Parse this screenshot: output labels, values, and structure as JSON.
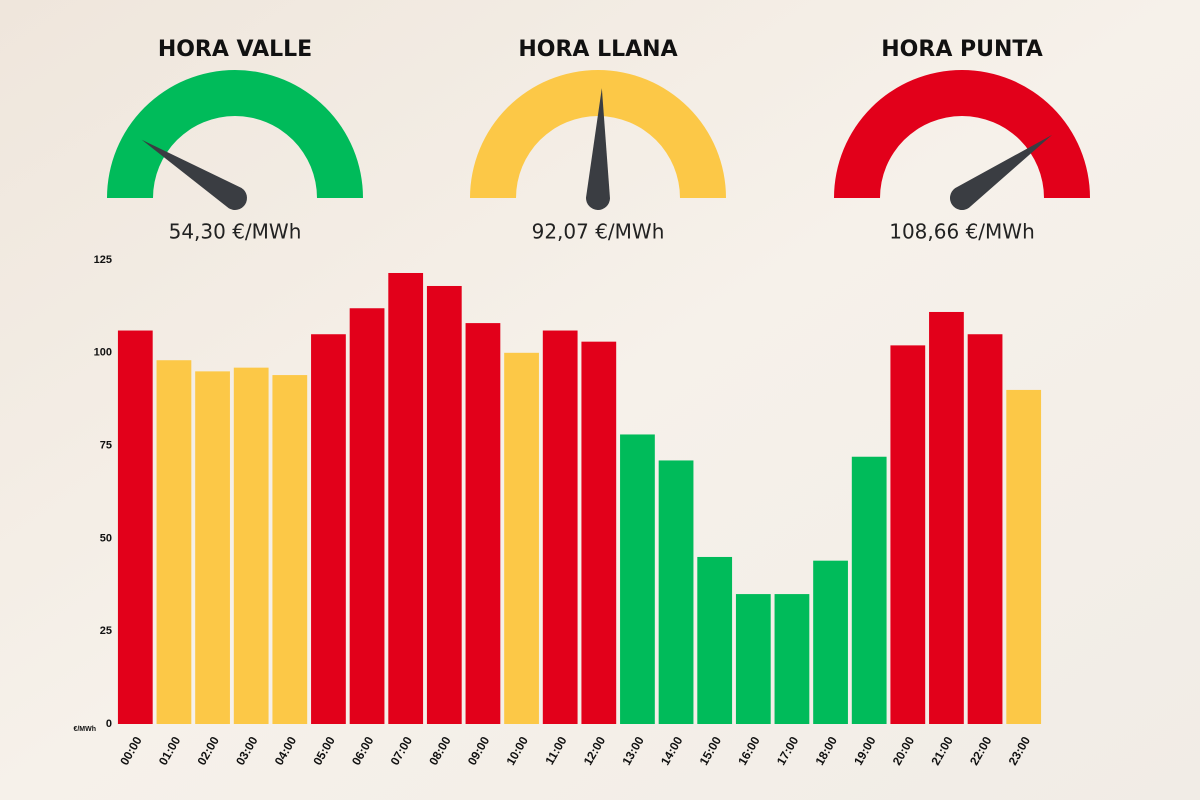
{
  "gauges": [
    {
      "title": "HORA VALLE",
      "label": "54,30 €/MWh",
      "color": "#00bb5a"
    },
    {
      "title": "HORA LLANA",
      "label": "92,07 €/MWh",
      "color": "#fcc847"
    },
    {
      "title": "HORA PUNTA",
      "label": "108,66 €/MWh",
      "color": "#e2001a"
    }
  ],
  "chart_data": {
    "type": "bar",
    "y_label": "€/MWh",
    "categories": [
      "00:00",
      "01:00",
      "02:00",
      "03:00",
      "04:00",
      "05:00",
      "06:00",
      "07:00",
      "08:00",
      "09:00",
      "10:00",
      "11:00",
      "12:00",
      "13:00",
      "14:00",
      "15:00",
      "16:00",
      "17:00",
      "18:00",
      "19:00",
      "20:00",
      "21:00",
      "22:00",
      "23:00"
    ],
    "values": [
      106,
      98,
      95,
      96,
      94,
      105,
      112,
      121.5,
      118,
      108,
      100,
      106,
      103,
      78,
      71,
      45,
      35,
      35,
      44,
      72,
      102,
      111,
      105,
      90
    ],
    "colors": [
      "#e2001a",
      "#fcc847",
      "#fcc847",
      "#fcc847",
      "#fcc847",
      "#e2001a",
      "#e2001a",
      "#e2001a",
      "#e2001a",
      "#e2001a",
      "#fcc847",
      "#e2001a",
      "#e2001a",
      "#00bb5a",
      "#00bb5a",
      "#00bb5a",
      "#00bb5a",
      "#00bb5a",
      "#00bb5a",
      "#00bb5a",
      "#e2001a",
      "#e2001a",
      "#e2001a",
      "#fcc847"
    ],
    "ylim": [
      0,
      125
    ],
    "yticks": [
      0,
      25,
      50,
      75,
      100,
      125
    ],
    "grid": false
  }
}
